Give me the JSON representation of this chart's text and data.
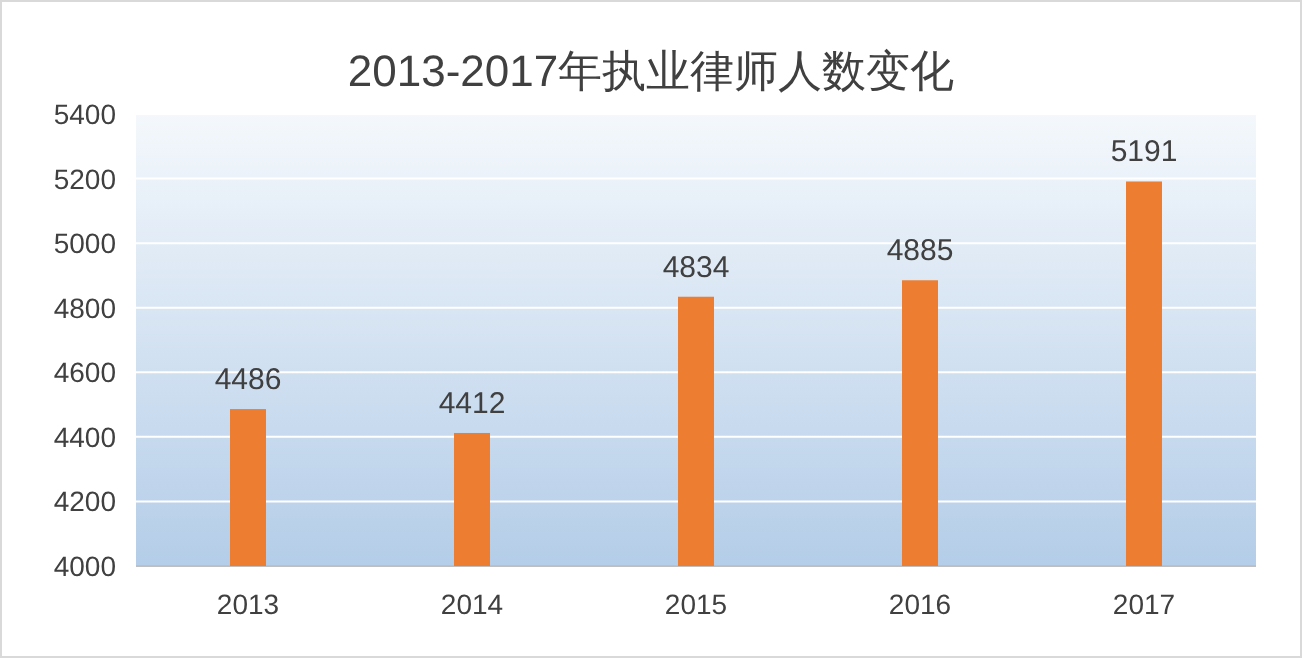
{
  "chart_data": {
    "type": "bar",
    "title": "2013-2017年执业律师人数变化",
    "categories": [
      "2013",
      "2014",
      "2015",
      "2016",
      "2017"
    ],
    "values": [
      4486,
      4412,
      4834,
      4885,
      5191
    ],
    "color": "#ed7d31",
    "ylim": [
      4000,
      5400
    ],
    "yticks": [
      4000,
      4200,
      4400,
      4600,
      4800,
      5000,
      5200,
      5400
    ],
    "grid": "y",
    "data_labels": true
  }
}
